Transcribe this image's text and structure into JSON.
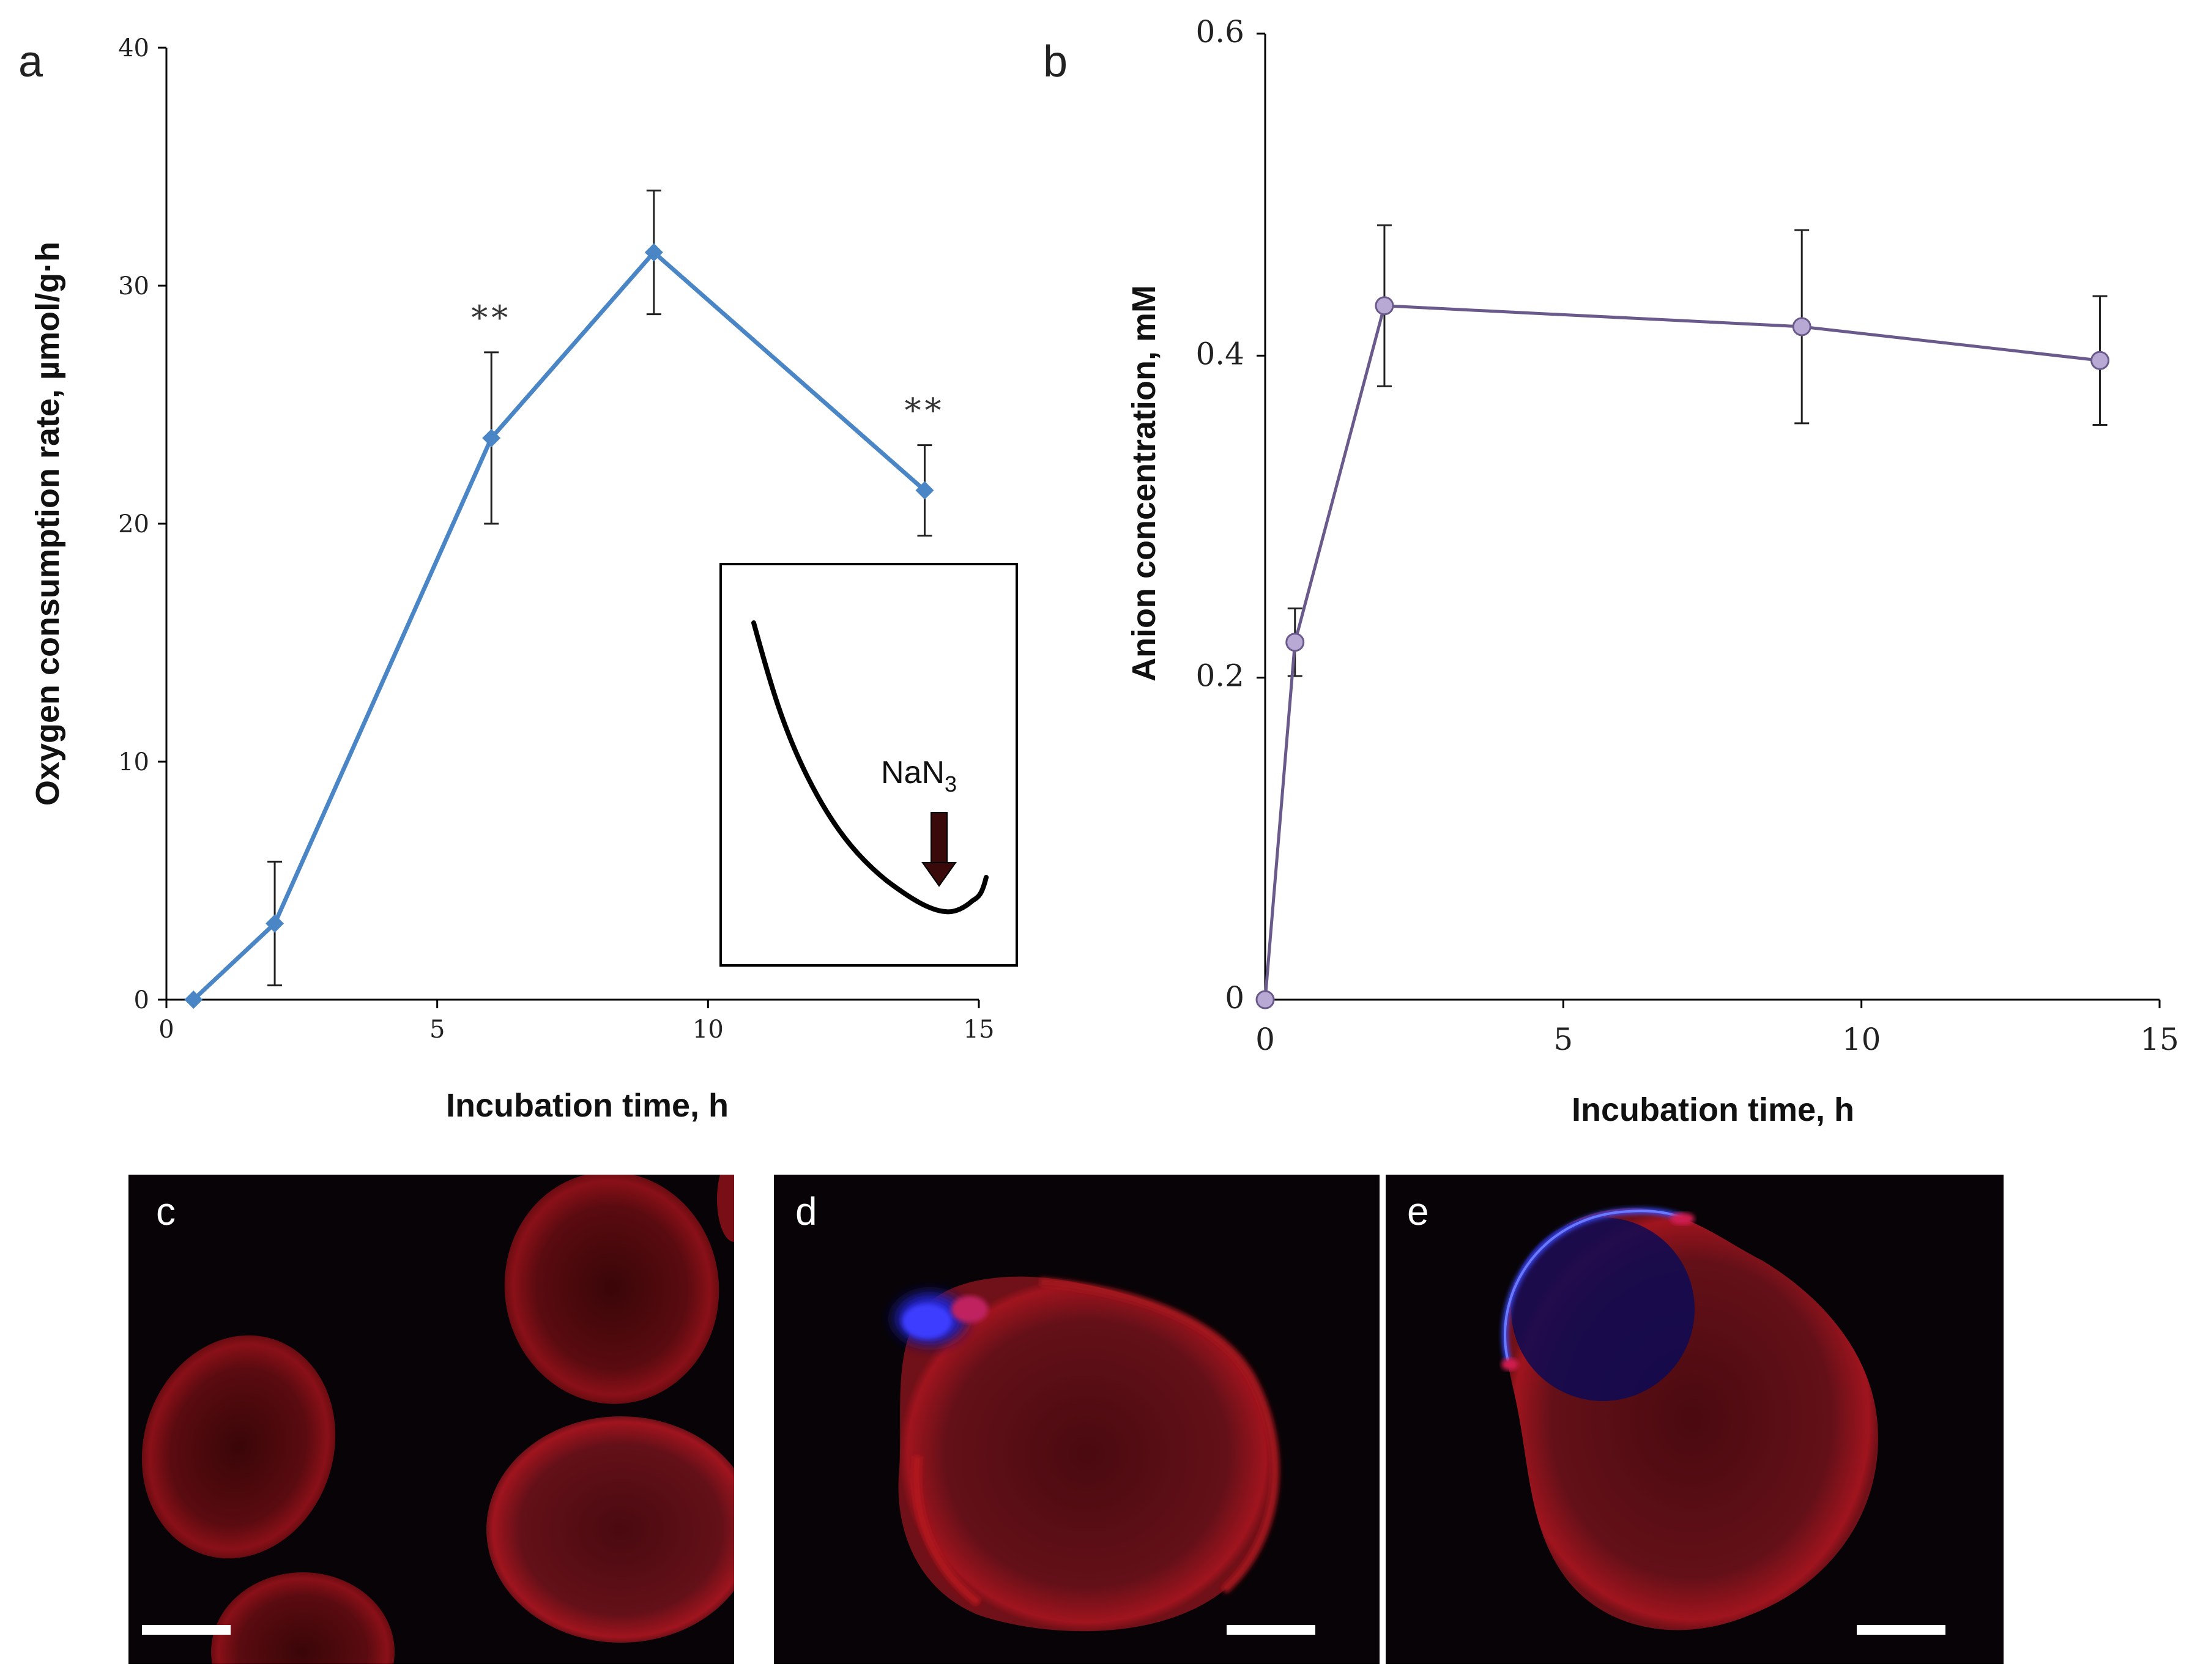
{
  "chart_data": [
    {
      "panel": "a",
      "type": "line",
      "xlabel": "Incubation time, h",
      "ylabel": "Oxygen consumption rate, µmol/g·h",
      "xlim": [
        0,
        15
      ],
      "ylim": [
        0,
        40
      ],
      "xticks": [
        0,
        5,
        10,
        15
      ],
      "yticks": [
        0,
        10,
        20,
        30,
        40
      ],
      "grid": false,
      "series": [
        {
          "name": "oxygen consumption",
          "color": "#4a86c5",
          "marker": "diamond",
          "x": [
            0.5,
            2,
            6,
            9,
            14
          ],
          "y": [
            0,
            3.2,
            23.6,
            31.4,
            21.4
          ],
          "err": [
            0,
            2.6,
            3.6,
            2.6,
            1.9
          ]
        }
      ],
      "annotations": [
        {
          "x": 6,
          "y": 27.2,
          "text": "**"
        },
        {
          "x": 14,
          "y": 23.3,
          "text": "**"
        }
      ],
      "inset": {
        "label_main": "NaN",
        "label_sub": "3",
        "arrow_color": "#3a0a0a"
      }
    },
    {
      "panel": "b",
      "type": "line",
      "xlabel": "Incubation time, h",
      "ylabel": "Anion concentration, mM",
      "xlim": [
        0,
        15
      ],
      "ylim": [
        0,
        0.6
      ],
      "xticks": [
        0,
        5,
        10,
        15
      ],
      "yticks": [
        0,
        0.2,
        0.4,
        0.6
      ],
      "ytick_labels": [
        "0",
        "0.2",
        "0.4",
        "0.6"
      ],
      "grid": false,
      "series": [
        {
          "name": "anion concentration",
          "color": "#6a5a8c",
          "marker_fill": "#b8a9d4",
          "marker": "circle",
          "x": [
            0,
            0.5,
            2,
            9,
            14
          ],
          "y": [
            0,
            0.222,
            0.431,
            0.418,
            0.397
          ],
          "err": [
            0,
            0.021,
            0.05,
            0.06,
            0.04
          ]
        }
      ]
    }
  ],
  "micrographs": [
    {
      "panel": "c"
    },
    {
      "panel": "d"
    },
    {
      "panel": "e"
    }
  ]
}
